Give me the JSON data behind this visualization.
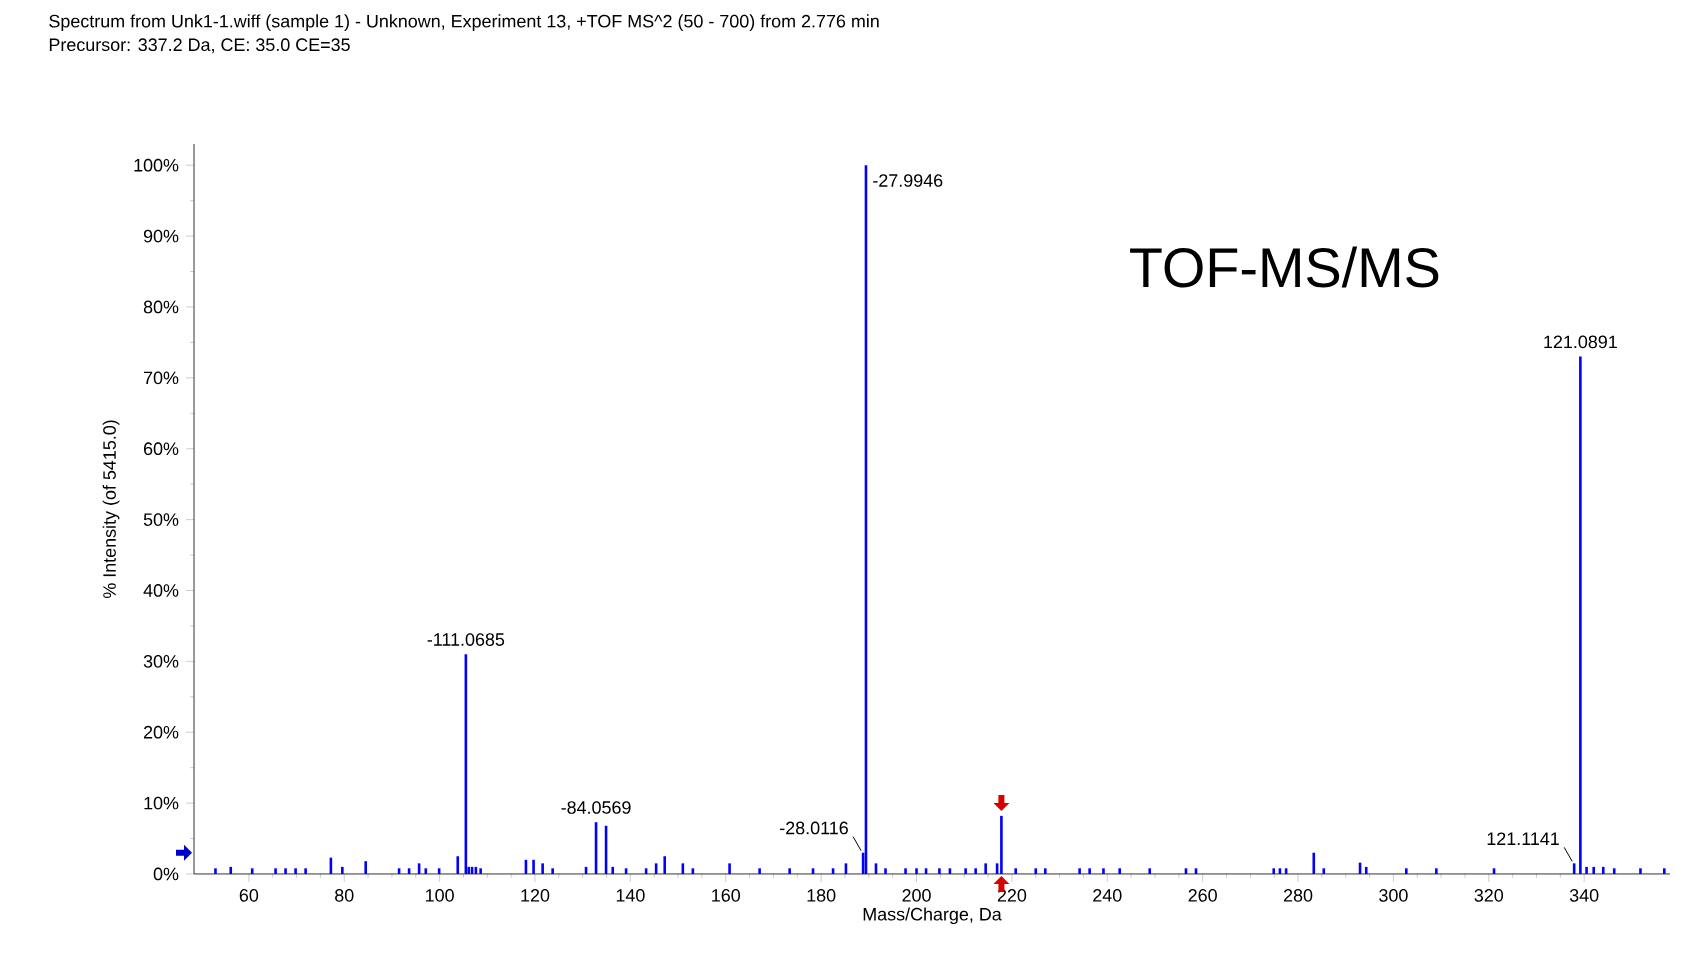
{
  "chart_data": {
    "type": "bar",
    "title": "Spectrum from Unk1-1.wiff (sample 1) - Unknown, Experiment 13, +TOF MS^2 (50 - 700) from 2.776 min",
    "subtitle": "Precursor: 337.2 Da, CE: 35.0 CE=35",
    "xlabel": "Mass/Charge, Da",
    "ylabel": "% Intensity (of 5415.0)",
    "x": [
      53.0,
      56.2,
      60.7,
      65.6,
      67.7,
      69.8,
      71.9,
      77.2,
      79.6,
      84.5,
      91.5,
      93.6,
      95.7,
      97.1,
      99.9,
      103.8,
      105.5,
      106.1,
      106.8,
      107.6,
      108.6,
      118.1,
      119.7,
      121.6,
      123.7,
      130.7,
      132.8,
      134.9,
      136.3,
      139.1,
      143.3,
      145.4,
      147.2,
      151.0,
      153.1,
      160.8,
      167.1,
      173.4,
      178.3,
      182.5,
      185.2,
      188.8,
      189.4,
      191.5,
      193.5,
      197.7,
      200.0,
      202.0,
      204.8,
      207.0,
      210.3,
      212.4,
      214.5,
      216.9,
      217.8,
      220.8,
      225.0,
      227.0,
      234.2,
      236.3,
      239.2,
      242.6,
      248.9,
      256.5,
      258.6,
      274.9,
      276.2,
      277.5,
      283.3,
      285.4,
      293.0,
      294.3,
      302.7,
      309.0,
      321.1,
      337.9,
      339.2,
      340.5,
      342.0,
      344.0,
      346.3,
      351.8,
      356.8
    ],
    "values": [
      0.8,
      1.0,
      0.8,
      0.8,
      0.8,
      0.8,
      0.8,
      2.3,
      1.0,
      1.8,
      0.8,
      0.8,
      1.5,
      0.8,
      0.8,
      2.5,
      31,
      1.0,
      1.0,
      1.0,
      0.8,
      2.0,
      2.0,
      1.5,
      0.8,
      1.0,
      7.3,
      6.8,
      1.0,
      0.8,
      0.8,
      1.5,
      2.5,
      1.5,
      0.8,
      1.5,
      0.8,
      0.8,
      0.8,
      0.8,
      1.5,
      3.0,
      100,
      1.5,
      0.8,
      0.8,
      0.8,
      0.8,
      0.8,
      0.8,
      0.8,
      0.8,
      1.5,
      1.5,
      8.2,
      0.8,
      0.8,
      0.8,
      0.8,
      0.8,
      0.8,
      0.8,
      0.8,
      0.8,
      0.8,
      0.8,
      0.8,
      0.8,
      3.0,
      0.8,
      1.6,
      1.0,
      0.8,
      0.8,
      0.8,
      1.5,
      73,
      1.0,
      1.0,
      1.0,
      0.8,
      0.8,
      0.8
    ],
    "color": "#0000ff",
    "xlim": [
      48.5,
      358
    ],
    "ylim": [
      0,
      103
    ],
    "xticks": [
      60,
      80,
      100,
      120,
      140,
      160,
      180,
      200,
      220,
      240,
      260,
      280,
      300,
      320,
      340
    ],
    "yticks": [
      {
        "value": 0,
        "label": "0%"
      },
      {
        "value": 10,
        "label": "10%"
      },
      {
        "value": 20,
        "label": "20%"
      },
      {
        "value": 30,
        "label": "30%"
      },
      {
        "value": 40,
        "label": "40%"
      },
      {
        "value": 50,
        "label": "50%"
      },
      {
        "value": 60,
        "label": "60%"
      },
      {
        "value": 70,
        "label": "70%"
      },
      {
        "value": 80,
        "label": "80%"
      },
      {
        "value": 90,
        "label": "90%"
      },
      {
        "value": 100,
        "label": "100%"
      }
    ],
    "annotations": [
      {
        "text": "-27.9946",
        "x": 189.4,
        "y": 100
      },
      {
        "text": "121.0891",
        "x": 339.2,
        "y": 73
      },
      {
        "text": "-111.0685",
        "x": 105.5,
        "y": 31
      },
      {
        "text": "-84.0569",
        "x": 132.8,
        "y": 7.3
      },
      {
        "text": "-28.0116",
        "x": 188.8,
        "y": 3.0
      },
      {
        "text": "121.1141",
        "x": 337.9,
        "y": 1.5
      },
      "TOF-MS/MS"
    ]
  }
}
